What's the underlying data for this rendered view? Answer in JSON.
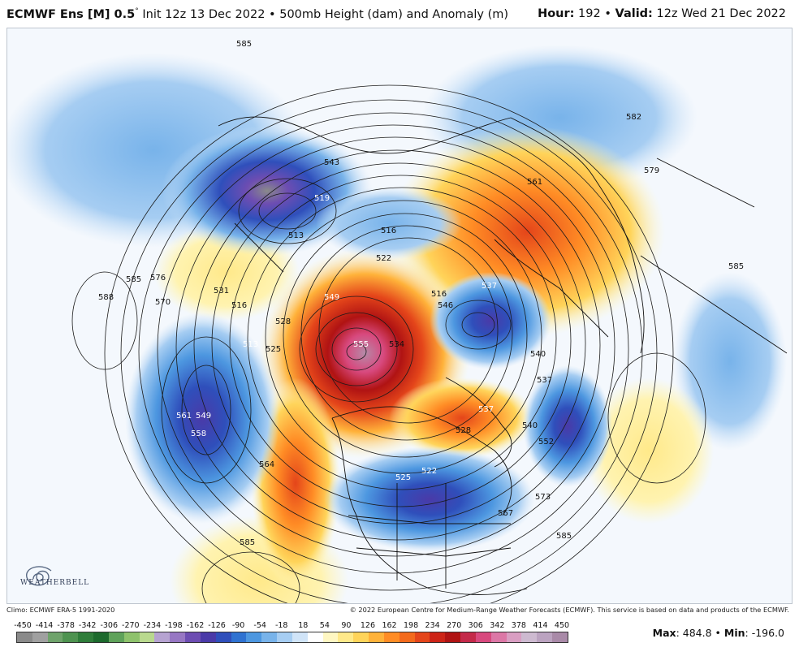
{
  "header": {
    "model": "ECMWF Ens [M] 0.5",
    "degree": "°",
    "init": " Init 12z 13 Dec 2022 • 500mb Height (dam) and Anomaly (m)",
    "hour_label": "Hour:",
    "hour": " 192 • ",
    "valid_label": "Valid:",
    "valid": " 12z Wed 21 Dec 2022"
  },
  "contour_labels": [
    "585",
    "543",
    "519",
    "513",
    "516",
    "561",
    "582",
    "579",
    "585",
    "588",
    "585",
    "576",
    "570",
    "531",
    "516",
    "513",
    "525",
    "528",
    "549",
    "522",
    "534",
    "555",
    "561",
    "558",
    "549",
    "564",
    "585",
    "537",
    "528",
    "540",
    "552",
    "567",
    "573",
    "585",
    "525",
    "522",
    "516",
    "537",
    "540",
    "537",
    "546"
  ],
  "logo": "WEATHERBELL",
  "footer": {
    "climo": "Climo: ECMWF ERA-5 1991-2020",
    "copyright": "© 2022 European Centre for Medium-Range Weather Forecasts (ECMWF). This service is based on data and products of the ECMWF."
  },
  "colorbar": {
    "ticks": [
      "-450",
      "-414",
      "-378",
      "-342",
      "-306",
      "-270",
      "-234",
      "-198",
      "-162",
      "-126",
      "-90",
      "-54",
      "-18",
      "18",
      "54",
      "90",
      "126",
      "162",
      "198",
      "234",
      "270",
      "306",
      "342",
      "378",
      "414",
      "450"
    ],
    "colors": [
      "#8a8a8a",
      "#a0a0a0",
      "#6fa36b",
      "#4e9350",
      "#2f7d3a",
      "#1d6a2d",
      "#5fa25a",
      "#8ec26c",
      "#b9d98e",
      "#b6a3d1",
      "#9777c3",
      "#6d4db2",
      "#4a3aa8",
      "#2f4fbb",
      "#2f72d1",
      "#4d97e0",
      "#78b3ea",
      "#a6cdf2",
      "#d0e4f8",
      "#ffffff",
      "#fff7c2",
      "#ffe98a",
      "#ffd45a",
      "#ffb23a",
      "#ff8c25",
      "#f36a1c",
      "#e4451a",
      "#cd2417",
      "#b01313",
      "#c42a4a",
      "#d8497e",
      "#dc77a6",
      "#d99ec2",
      "#cdbad0",
      "#bba3c0",
      "#a98aa8"
    ]
  },
  "stats": {
    "max_label": "Max",
    "max": ": 484.8 • ",
    "min_label": "Min",
    "min": ": -196.0"
  }
}
